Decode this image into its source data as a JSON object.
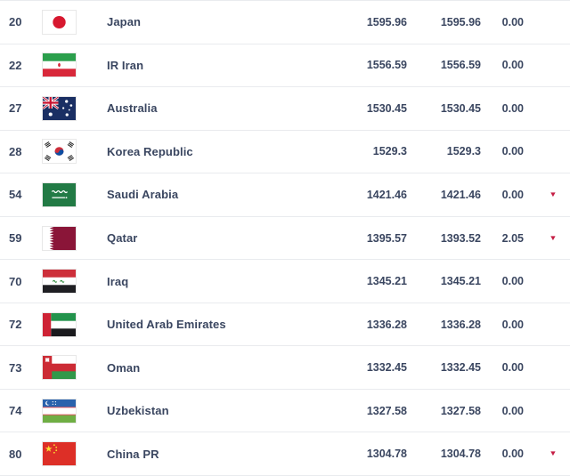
{
  "table": {
    "columns": [
      "rank",
      "flag",
      "team",
      "total_points",
      "previous_points",
      "points_change",
      "trend"
    ],
    "rows": [
      {
        "rank": "20",
        "flag": "flag-japan",
        "team": "Japan",
        "total_points": "1595.96",
        "previous_points": "1595.96",
        "points_change": "0.00",
        "trend": ""
      },
      {
        "rank": "22",
        "flag": "flag-iran",
        "team": "IR Iran",
        "total_points": "1556.59",
        "previous_points": "1556.59",
        "points_change": "0.00",
        "trend": ""
      },
      {
        "rank": "27",
        "flag": "flag-australia",
        "team": "Australia",
        "total_points": "1530.45",
        "previous_points": "1530.45",
        "points_change": "0.00",
        "trend": ""
      },
      {
        "rank": "28",
        "flag": "flag-korea-republic",
        "team": "Korea Republic",
        "total_points": "1529.3",
        "previous_points": "1529.3",
        "points_change": "0.00",
        "trend": ""
      },
      {
        "rank": "54",
        "flag": "flag-saudi-arabia",
        "team": "Saudi Arabia",
        "total_points": "1421.46",
        "previous_points": "1421.46",
        "points_change": "0.00",
        "trend": "down"
      },
      {
        "rank": "59",
        "flag": "flag-qatar",
        "team": "Qatar",
        "total_points": "1395.57",
        "previous_points": "1393.52",
        "points_change": "2.05",
        "trend": "down"
      },
      {
        "rank": "70",
        "flag": "flag-iraq",
        "team": "Iraq",
        "total_points": "1345.21",
        "previous_points": "1345.21",
        "points_change": "0.00",
        "trend": ""
      },
      {
        "rank": "72",
        "flag": "flag-uae",
        "team": "United Arab Emirates",
        "total_points": "1336.28",
        "previous_points": "1336.28",
        "points_change": "0.00",
        "trend": ""
      },
      {
        "rank": "73",
        "flag": "flag-oman",
        "team": "Oman",
        "total_points": "1332.45",
        "previous_points": "1332.45",
        "points_change": "0.00",
        "trend": ""
      },
      {
        "rank": "74",
        "flag": "flag-uzbekistan",
        "team": "Uzbekistan",
        "total_points": "1327.58",
        "previous_points": "1327.58",
        "points_change": "0.00",
        "trend": ""
      },
      {
        "rank": "80",
        "flag": "flag-china-pr",
        "team": "China PR",
        "total_points": "1304.78",
        "previous_points": "1304.78",
        "points_change": "0.00",
        "trend": "down"
      }
    ],
    "trend_down_icon": "▼"
  },
  "colors": {
    "text": "#3a4660",
    "separator": "#e9ebee",
    "trend_down": "#c51d44",
    "background": "#ffffff"
  }
}
